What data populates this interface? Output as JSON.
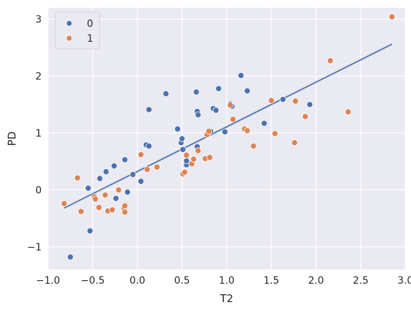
{
  "chart_data": {
    "type": "scatter",
    "xlabel": "T2",
    "ylabel": "PD",
    "xlim": [
      -1.0,
      3.0
    ],
    "ylim": [
      -1.4,
      3.2
    ],
    "xticks": [
      -1.0,
      -0.5,
      0.0,
      0.5,
      1.0,
      1.5,
      2.0,
      2.5,
      3.0
    ],
    "xtick_labels": [
      "−1.0",
      "−0.5",
      "0.0",
      "0.5",
      "1.0",
      "1.5",
      "2.0",
      "2.5",
      "3.0"
    ],
    "yticks": [
      -1,
      0,
      1,
      2,
      3
    ],
    "ytick_labels": [
      "−1",
      "0",
      "1",
      "2",
      "3"
    ],
    "grid": true,
    "legend_position": "top-left",
    "series": [
      {
        "name": "0",
        "color": "#4c72b0",
        "points": [
          [
            -0.75,
            -1.18
          ],
          [
            -0.53,
            -0.72
          ],
          [
            -0.55,
            0.03
          ],
          [
            -0.42,
            0.2
          ],
          [
            -0.35,
            0.32
          ],
          [
            -0.26,
            0.42
          ],
          [
            -0.24,
            -0.15
          ],
          [
            -0.14,
            0.53
          ],
          [
            -0.11,
            -0.04
          ],
          [
            -0.05,
            0.27
          ],
          [
            0.04,
            0.15
          ],
          [
            0.1,
            0.79
          ],
          [
            0.13,
            0.77
          ],
          [
            0.13,
            1.41
          ],
          [
            0.32,
            1.69
          ],
          [
            0.45,
            1.07
          ],
          [
            0.49,
            0.83
          ],
          [
            0.5,
            0.9
          ],
          [
            0.51,
            0.71
          ],
          [
            0.55,
            0.44
          ],
          [
            0.55,
            0.51
          ],
          [
            0.66,
            1.72
          ],
          [
            0.67,
            1.38
          ],
          [
            0.68,
            1.32
          ],
          [
            0.67,
            0.76
          ],
          [
            0.82,
            1.03
          ],
          [
            0.85,
            1.43
          ],
          [
            0.88,
            1.4
          ],
          [
            0.91,
            1.78
          ],
          [
            0.98,
            1.02
          ],
          [
            1.04,
            1.51
          ],
          [
            1.06,
            1.47
          ],
          [
            1.16,
            2.01
          ],
          [
            1.23,
            1.74
          ],
          [
            1.42,
            1.17
          ],
          [
            1.63,
            1.59
          ],
          [
            1.93,
            1.5
          ]
        ]
      },
      {
        "name": "1",
        "color": "#dd8452",
        "points": [
          [
            -0.82,
            -0.24
          ],
          [
            -0.67,
            0.21
          ],
          [
            -0.63,
            -0.38
          ],
          [
            -0.48,
            -0.12
          ],
          [
            -0.47,
            -0.16
          ],
          [
            -0.43,
            -0.31
          ],
          [
            -0.36,
            -0.09
          ],
          [
            -0.33,
            -0.37
          ],
          [
            -0.28,
            -0.35
          ],
          [
            -0.21,
            0.0
          ],
          [
            -0.15,
            -0.32
          ],
          [
            -0.14,
            -0.28
          ],
          [
            -0.14,
            -0.39
          ],
          [
            0.04,
            0.62
          ],
          [
            0.11,
            0.36
          ],
          [
            0.22,
            0.4
          ],
          [
            0.51,
            0.28
          ],
          [
            0.53,
            0.31
          ],
          [
            0.55,
            0.61
          ],
          [
            0.61,
            0.46
          ],
          [
            0.63,
            0.54
          ],
          [
            0.68,
            0.69
          ],
          [
            0.76,
            0.55
          ],
          [
            0.78,
            0.97
          ],
          [
            0.8,
            1.03
          ],
          [
            0.81,
            0.57
          ],
          [
            1.04,
            1.49
          ],
          [
            1.07,
            1.24
          ],
          [
            1.2,
            1.07
          ],
          [
            1.23,
            1.04
          ],
          [
            1.3,
            0.77
          ],
          [
            1.5,
            1.57
          ],
          [
            1.54,
            0.99
          ],
          [
            1.76,
            0.83
          ],
          [
            1.77,
            1.56
          ],
          [
            1.88,
            1.29
          ],
          [
            2.16,
            2.27
          ],
          [
            2.36,
            1.37
          ],
          [
            2.85,
            3.04
          ]
        ]
      }
    ],
    "regression_line": {
      "color": "#4c72b0",
      "from": [
        -0.82,
        -0.32
      ],
      "to": [
        2.85,
        2.56
      ]
    }
  }
}
